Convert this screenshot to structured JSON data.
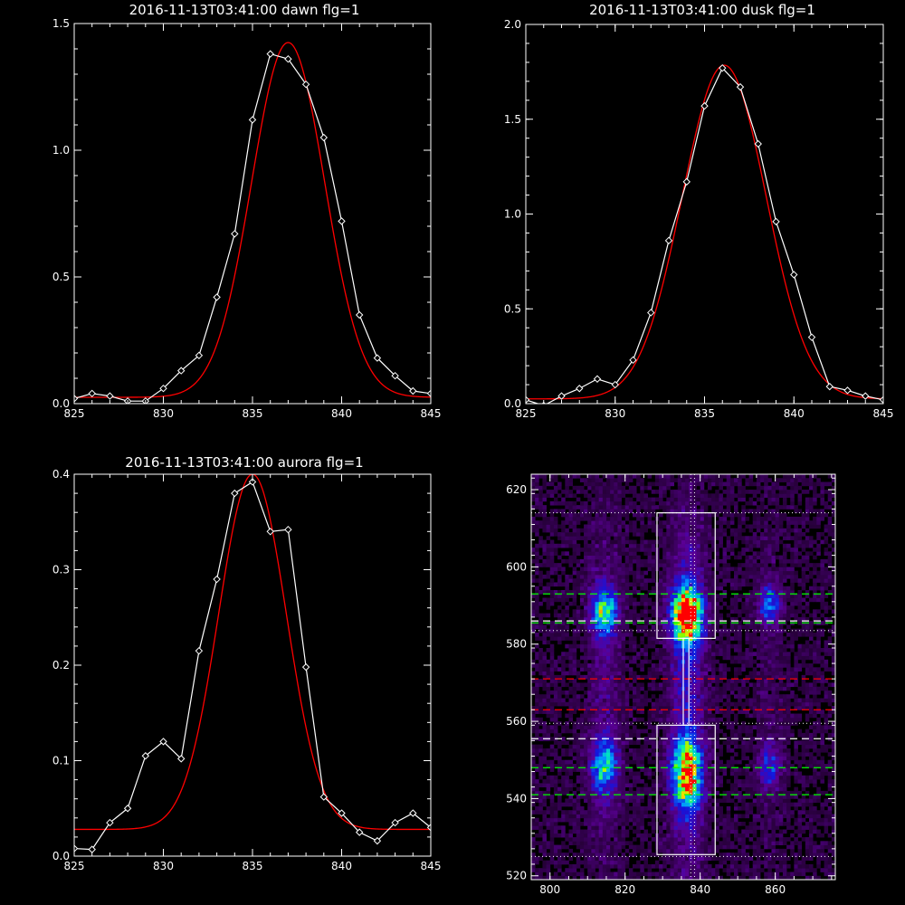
{
  "chart_data": [
    {
      "type": "line",
      "title": "2016-11-13T03:41:00 dawn flg=1",
      "xlim": [
        825,
        845
      ],
      "ylim": [
        0,
        1.5
      ],
      "xticks": [
        "825",
        "830",
        "835",
        "840",
        "845"
      ],
      "yticks": [
        "0.0",
        "0.5",
        "1.0",
        "1.5"
      ],
      "colors": {
        "data": "#ffffff",
        "fit": "#ff0000"
      },
      "series": [
        {
          "role": "data",
          "marker": "diamond",
          "x": [
            825,
            826,
            827,
            828,
            829,
            830,
            831,
            832,
            833,
            834,
            835,
            836,
            837,
            838,
            839,
            840,
            841,
            842,
            843,
            844,
            845
          ],
          "y": [
            0.02,
            0.04,
            0.03,
            0.01,
            0.01,
            0.06,
            0.13,
            0.19,
            0.42,
            0.67,
            1.12,
            1.38,
            1.36,
            1.26,
            1.05,
            0.72,
            0.35,
            0.18,
            0.11,
            0.05,
            0.04
          ]
        },
        {
          "role": "fit",
          "marker": "none",
          "gauss": {
            "amp": 1.4,
            "center": 837.0,
            "sigma": 2.05,
            "offset": 0.025
          }
        }
      ]
    },
    {
      "type": "line",
      "title": "2016-11-13T03:41:00 dusk flg=1",
      "xlim": [
        825,
        845
      ],
      "ylim": [
        0,
        2.0
      ],
      "xticks": [
        "825",
        "830",
        "835",
        "840",
        "845"
      ],
      "yticks": [
        "0.0",
        "0.5",
        "1.0",
        "1.5",
        "2.0"
      ],
      "colors": {
        "data": "#ffffff",
        "fit": "#ff0000"
      },
      "series": [
        {
          "role": "data",
          "marker": "diamond",
          "x": [
            825,
            826,
            827,
            828,
            829,
            830,
            831,
            832,
            833,
            834,
            835,
            836,
            837,
            838,
            839,
            840,
            841,
            842,
            843,
            844,
            845
          ],
          "y": [
            0.02,
            -0.01,
            0.04,
            0.08,
            0.13,
            0.1,
            0.23,
            0.48,
            0.86,
            1.17,
            1.57,
            1.77,
            1.67,
            1.37,
            0.96,
            0.68,
            0.35,
            0.09,
            0.07,
            0.04,
            0.02
          ]
        },
        {
          "role": "fit",
          "marker": "none",
          "gauss": {
            "amp": 1.76,
            "center": 836.1,
            "sigma": 2.35,
            "offset": 0.025
          }
        }
      ]
    },
    {
      "type": "line",
      "title": "2016-11-13T03:41:00 aurora flg=1",
      "xlim": [
        825,
        845
      ],
      "ylim": [
        0,
        0.4
      ],
      "xticks": [
        "825",
        "830",
        "835",
        "840",
        "845"
      ],
      "yticks": [
        "0.0",
        "0.1",
        "0.2",
        "0.3",
        "0.4"
      ],
      "colors": {
        "data": "#ffffff",
        "fit": "#ff0000"
      },
      "series": [
        {
          "role": "data",
          "marker": "diamond",
          "x": [
            825,
            826,
            827,
            828,
            829,
            830,
            831,
            832,
            833,
            834,
            835,
            836,
            837,
            838,
            839,
            840,
            841,
            842,
            843,
            844,
            845
          ],
          "y": [
            0.008,
            0.007,
            0.035,
            0.05,
            0.105,
            0.12,
            0.102,
            0.215,
            0.29,
            0.38,
            0.392,
            0.34,
            0.342,
            0.198,
            0.062,
            0.045,
            0.025,
            0.016,
            0.035,
            0.045,
            0.03
          ]
        },
        {
          "role": "fit",
          "marker": "none",
          "gauss": {
            "amp": 0.372,
            "center": 835.0,
            "sigma": 1.9,
            "offset": 0.028
          }
        }
      ]
    },
    {
      "type": "heatmap",
      "title": "",
      "xlim": [
        795,
        876
      ],
      "ylim": [
        519,
        624
      ],
      "xticks": [
        "800",
        "820",
        "840",
        "860"
      ],
      "yticks": [
        "520",
        "540",
        "560",
        "580",
        "600",
        "620"
      ],
      "blobs": [
        {
          "x": 814,
          "y": 588,
          "amp": 0.55,
          "sx": 2.3,
          "sy": 4.0
        },
        {
          "x": 836,
          "y": 587,
          "amp": 1.0,
          "sx": 2.6,
          "sy": 4.5
        },
        {
          "x": 858,
          "y": 590,
          "amp": 0.35,
          "sx": 2.0,
          "sy": 3.0
        },
        {
          "x": 814,
          "y": 548,
          "amp": 0.45,
          "sx": 2.4,
          "sy": 5.0
        },
        {
          "x": 836,
          "y": 546,
          "amp": 0.8,
          "sx": 2.6,
          "sy": 6.0
        },
        {
          "x": 858,
          "y": 548,
          "amp": 0.25,
          "sx": 2.0,
          "sy": 4.0
        }
      ],
      "boxes": [
        {
          "x0": 828.5,
          "x1": 844.0,
          "y0": 581.5,
          "y1": 614.0
        },
        {
          "x0": 828.5,
          "x1": 844.0,
          "y0": 525.5,
          "y1": 559.0
        },
        {
          "x0": 835.5,
          "x1": 837.0,
          "y0": 559.0,
          "y1": 581.5
        }
      ],
      "vlines": [
        837.5,
        838.5
      ],
      "hlines_dotted": [
        614,
        583.5,
        559.5,
        525
      ],
      "hlines_green": [
        593,
        585.5,
        548,
        541
      ],
      "hlines_red": [
        571,
        563
      ],
      "hlines_white": [
        586,
        555.5
      ],
      "colors": {
        "green": "#00ff00",
        "red": "#ff0000",
        "white": "#ffffff"
      }
    }
  ]
}
